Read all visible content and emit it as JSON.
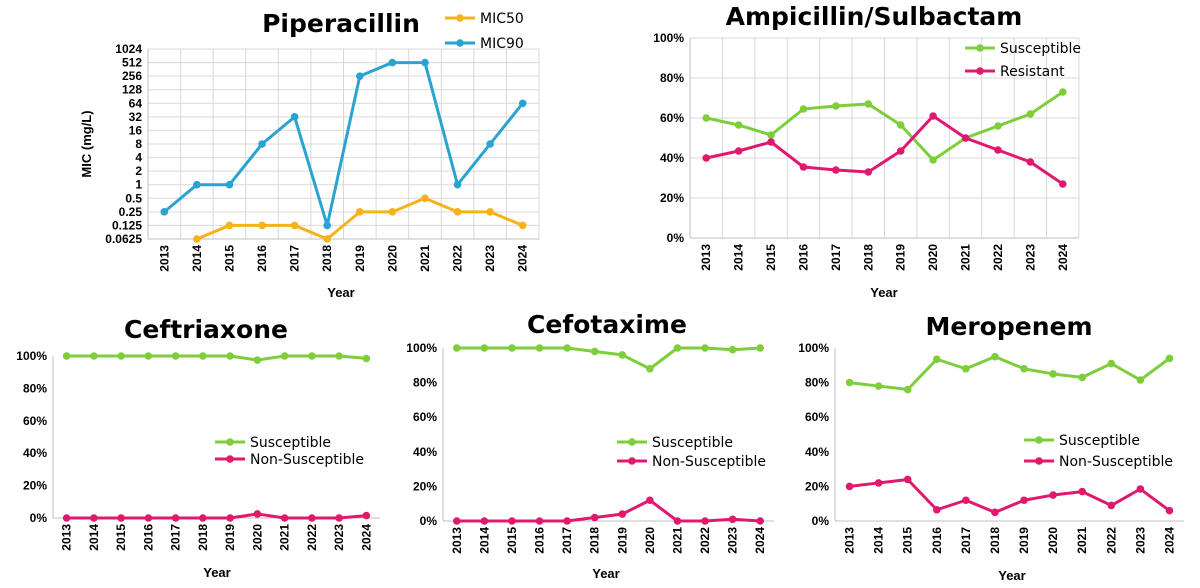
{
  "colors": {
    "green": "#7dce3a",
    "magenta": "#e0196e",
    "orange": "#f5b21b",
    "blue": "#2aa3d1"
  },
  "chart_data": [
    {
      "type": "line",
      "title": "Piperacillin",
      "xlabel": "Year",
      "ylabel": "MIC (mg/L)",
      "scale": "log2",
      "categories": [
        "2013",
        "2014",
        "2015",
        "2016",
        "2017",
        "2018",
        "2019",
        "2020",
        "2021",
        "2022",
        "2023",
        "2024"
      ],
      "yticks": [
        "0.0625",
        "0.125",
        "0.25",
        "0.5",
        "1",
        "2",
        "4",
        "8",
        "16",
        "32",
        "64",
        "128",
        "256",
        "512",
        "1024"
      ],
      "ytick_values": [
        0.0625,
        0.125,
        0.25,
        0.5,
        1,
        2,
        4,
        8,
        16,
        32,
        64,
        128,
        256,
        512,
        1024
      ],
      "grid": true,
      "legend_position": "top-right",
      "series": [
        {
          "name": "MIC50",
          "color": "#f5b21b",
          "values": [
            null,
            0.0625,
            0.125,
            0.125,
            0.125,
            0.0625,
            0.25,
            0.25,
            0.5,
            0.25,
            0.25,
            0.125
          ]
        },
        {
          "name": "MIC90",
          "color": "#2aa3d1",
          "values": [
            0.25,
            1,
            1,
            8,
            32,
            0.125,
            256,
            512,
            512,
            1,
            8,
            64
          ]
        }
      ]
    },
    {
      "type": "line",
      "title": "Ampicillin/Sulbactam",
      "xlabel": "Year",
      "ylabel": "",
      "categories": [
        "2013",
        "2014",
        "2015",
        "2016",
        "2017",
        "2018",
        "2019",
        "2020",
        "2021",
        "2022",
        "2023",
        "2024"
      ],
      "yticks": [
        "0%",
        "20%",
        "40%",
        "60%",
        "80%",
        "100%"
      ],
      "ylim": [
        0,
        100
      ],
      "grid": true,
      "legend_position": "top-right",
      "series": [
        {
          "name": "Susceptible",
          "color": "#7dce3a",
          "values": [
            60,
            56.5,
            51.5,
            64.5,
            66,
            67,
            56.5,
            39,
            50,
            56,
            62,
            73
          ]
        },
        {
          "name": "Resistant",
          "color": "#e0196e",
          "values": [
            40,
            43.5,
            48,
            35.5,
            34,
            33,
            43.5,
            61,
            50,
            44,
            38,
            27
          ]
        }
      ]
    },
    {
      "type": "line",
      "title": "Ceftriaxone",
      "xlabel": "Year",
      "ylabel": "",
      "categories": [
        "2013",
        "2014",
        "2015",
        "2016",
        "2017",
        "2018",
        "2019",
        "2020",
        "2021",
        "2022",
        "2023",
        "2024"
      ],
      "yticks": [
        "0%",
        "20%",
        "40%",
        "60%",
        "80%",
        "100%"
      ],
      "ylim": [
        0,
        100
      ],
      "grid": false,
      "legend_position": "center-right",
      "series": [
        {
          "name": "Susceptible",
          "color": "#7dce3a",
          "values": [
            100,
            100,
            100,
            100,
            100,
            100,
            100,
            97.5,
            100,
            100,
            100,
            98.5
          ]
        },
        {
          "name": "Non-Susceptible",
          "color": "#e0196e",
          "values": [
            0,
            0,
            0,
            0,
            0,
            0,
            0,
            2.5,
            0,
            0,
            0,
            1.5
          ]
        }
      ]
    },
    {
      "type": "line",
      "title": "Cefotaxime",
      "xlabel": "Year",
      "ylabel": "",
      "categories": [
        "2013",
        "2014",
        "2015",
        "2016",
        "2017",
        "2018",
        "2019",
        "2020",
        "2021",
        "2022",
        "2023",
        "2024"
      ],
      "yticks": [
        "0%",
        "20%",
        "40%",
        "60%",
        "80%",
        "100%"
      ],
      "ylim": [
        0,
        100
      ],
      "grid": false,
      "legend_position": "center-right",
      "series": [
        {
          "name": "Susceptible",
          "color": "#7dce3a",
          "values": [
            100,
            100,
            100,
            100,
            100,
            98,
            96,
            88,
            100,
            100,
            99,
            100
          ]
        },
        {
          "name": "Non-Susceptible",
          "color": "#e0196e",
          "values": [
            0,
            0,
            0,
            0,
            0,
            2,
            4,
            12,
            0,
            0,
            1,
            0
          ]
        }
      ]
    },
    {
      "type": "line",
      "title": "Meropenem",
      "xlabel": "Year",
      "ylabel": "",
      "categories": [
        "2013",
        "2014",
        "2015",
        "2016",
        "2017",
        "2018",
        "2019",
        "2020",
        "2021",
        "2022",
        "2023",
        "2024"
      ],
      "yticks": [
        "0%",
        "20%",
        "40%",
        "60%",
        "80%",
        "100%"
      ],
      "ylim": [
        0,
        100
      ],
      "grid": false,
      "legend_position": "center-right",
      "series": [
        {
          "name": "Susceptible",
          "color": "#7dce3a",
          "values": [
            80,
            78,
            76,
            93.5,
            88,
            95,
            88,
            85,
            83,
            91,
            81.5,
            94
          ]
        },
        {
          "name": "Non-Susceptible",
          "color": "#e0196e",
          "values": [
            20,
            22,
            24,
            6.5,
            12,
            5,
            12,
            15,
            17,
            9,
            18.5,
            6
          ]
        }
      ]
    }
  ]
}
